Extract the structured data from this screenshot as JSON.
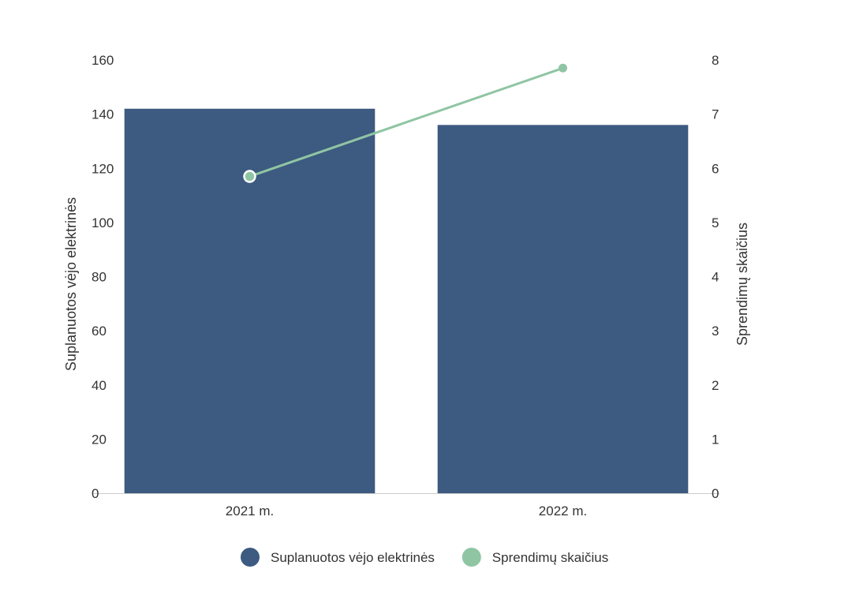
{
  "chart_data": {
    "type": "bar",
    "categories": [
      "2021 m.",
      "2022 m."
    ],
    "series": [
      {
        "name": "Suplanuotos vėjo elektrinės",
        "type": "bar",
        "axis": "left",
        "color": "#3d5a80",
        "values": [
          142,
          136
        ]
      },
      {
        "name": "Sprendimų skaičius",
        "type": "line",
        "axis": "right",
        "color": "#8fc5a3",
        "values": [
          5.85,
          7.85
        ]
      }
    ],
    "y_left": {
      "label": "Suplanuotos vėjo elektrinės",
      "ylim": [
        0,
        160
      ],
      "ticks": [
        "0",
        "20",
        "40",
        "60",
        "80",
        "100",
        "120",
        "140",
        "160"
      ]
    },
    "y_right": {
      "label": "Sprendimų skaičius",
      "ylim": [
        0,
        8
      ],
      "ticks": [
        "0",
        "1",
        "2",
        "3",
        "4",
        "5",
        "6",
        "7",
        "8"
      ]
    },
    "grid": false,
    "legend_position": "bottom-center"
  }
}
